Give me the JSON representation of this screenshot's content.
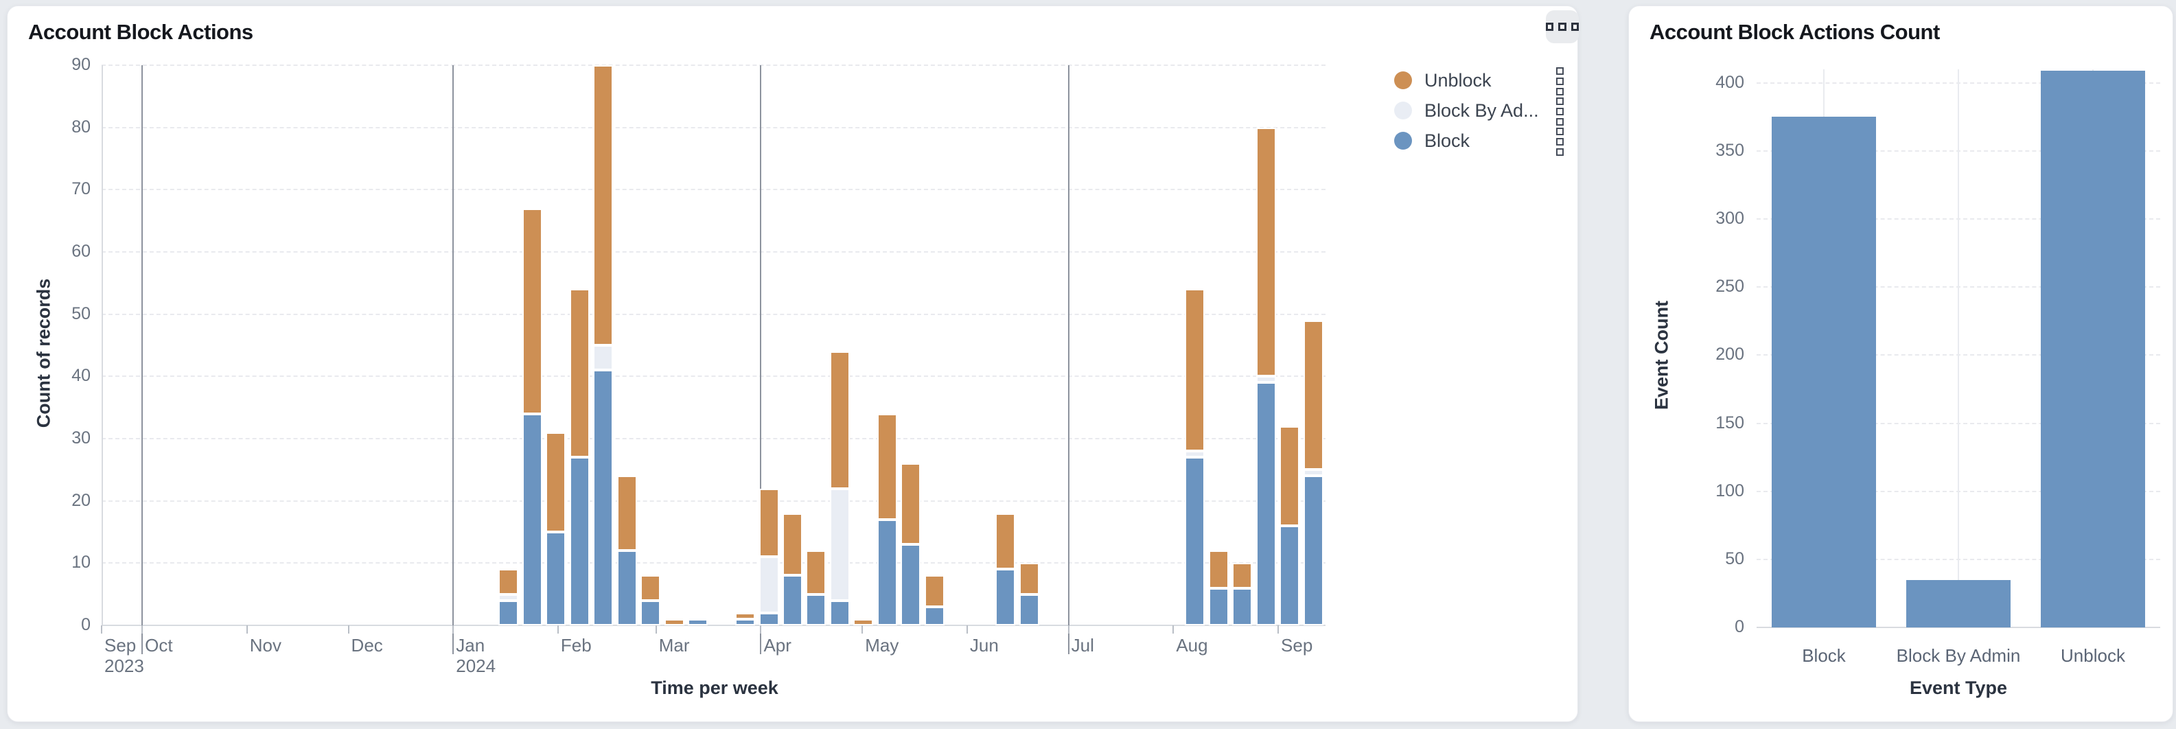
{
  "page": {
    "background": "#e8ebef"
  },
  "left_card": {
    "title": "Account Block Actions",
    "menu_icon": "ellipsis-squares-icon",
    "xlabel": "Time per week",
    "ylabel": "Count of records",
    "legend": {
      "items": [
        {
          "label": "Unblock",
          "color": "#cd8f54"
        },
        {
          "label": "Block By Ad...",
          "color": "#e9edf4"
        },
        {
          "label": "Block",
          "color": "#6b94c0"
        }
      ]
    }
  },
  "right_card": {
    "title": "Account Block Actions Count",
    "xlabel": "Event Type",
    "ylabel": "Event Count"
  },
  "chart_data": [
    {
      "type": "bar",
      "stacked": true,
      "title": "Account Block Actions",
      "xlabel": "Time per week",
      "ylabel": "Count of records",
      "ylim": [
        0,
        90
      ],
      "y_tick_step": 10,
      "grid": true,
      "legend_position": "top-right",
      "series_order": [
        "Block",
        "Block By Admin",
        "Unblock"
      ],
      "series_colors": {
        "Block": "#6b94c0",
        "Block By Admin": "#e9edf4",
        "Unblock": "#cd8f54"
      },
      "x_axis": {
        "start": "2023-09-19",
        "end": "2024-09-15",
        "month_ticks": [
          {
            "label": "Sep",
            "sublabel": "2023",
            "date": "2023-09-19"
          },
          {
            "label": "Oct",
            "date": "2023-10-01"
          },
          {
            "label": "Nov",
            "date": "2023-11-01"
          },
          {
            "label": "Dec",
            "date": "2023-12-01"
          },
          {
            "label": "Jan",
            "sublabel": "2024",
            "date": "2024-01-01"
          },
          {
            "label": "Feb",
            "date": "2024-02-01"
          },
          {
            "label": "Mar",
            "date": "2024-03-01"
          },
          {
            "label": "Apr",
            "date": "2024-04-01"
          },
          {
            "label": "May",
            "date": "2024-05-01"
          },
          {
            "label": "Jun",
            "date": "2024-06-01"
          },
          {
            "label": "Jul",
            "date": "2024-07-01"
          },
          {
            "label": "Aug",
            "date": "2024-08-01"
          },
          {
            "label": "Sep",
            "date": "2024-09-01"
          }
        ],
        "quarter_lines": [
          "2023-10-01",
          "2024-01-01",
          "2024-04-01",
          "2024-07-01"
        ]
      },
      "weeks": [
        {
          "week": "2024-01-14",
          "Block": 4,
          "Block By Admin": 1,
          "Unblock": 4
        },
        {
          "week": "2024-01-21",
          "Block": 34,
          "Block By Admin": 0,
          "Unblock": 33
        },
        {
          "week": "2024-01-28",
          "Block": 15,
          "Block By Admin": 0,
          "Unblock": 16
        },
        {
          "week": "2024-02-04",
          "Block": 27,
          "Block By Admin": 0,
          "Unblock": 27
        },
        {
          "week": "2024-02-11",
          "Block": 41,
          "Block By Admin": 4,
          "Unblock": 45
        },
        {
          "week": "2024-02-18",
          "Block": 12,
          "Block By Admin": 0,
          "Unblock": 12
        },
        {
          "week": "2024-02-25",
          "Block": 4,
          "Block By Admin": 0,
          "Unblock": 4
        },
        {
          "week": "2024-03-03",
          "Block": 0,
          "Block By Admin": 0,
          "Unblock": 1
        },
        {
          "week": "2024-03-10",
          "Block": 1,
          "Block By Admin": 0,
          "Unblock": 0
        },
        {
          "week": "2024-03-24",
          "Block": 1,
          "Block By Admin": 0,
          "Unblock": 1
        },
        {
          "week": "2024-03-31",
          "Block": 2,
          "Block By Admin": 9,
          "Unblock": 11
        },
        {
          "week": "2024-04-07",
          "Block": 8,
          "Block By Admin": 0,
          "Unblock": 10
        },
        {
          "week": "2024-04-14",
          "Block": 5,
          "Block By Admin": 0,
          "Unblock": 7
        },
        {
          "week": "2024-04-21",
          "Block": 4,
          "Block By Admin": 18,
          "Unblock": 22
        },
        {
          "week": "2024-04-28",
          "Block": 0,
          "Block By Admin": 0,
          "Unblock": 1
        },
        {
          "week": "2024-05-05",
          "Block": 17,
          "Block By Admin": 0,
          "Unblock": 17
        },
        {
          "week": "2024-05-12",
          "Block": 13,
          "Block By Admin": 0,
          "Unblock": 13
        },
        {
          "week": "2024-05-19",
          "Block": 3,
          "Block By Admin": 0,
          "Unblock": 5
        },
        {
          "week": "2024-06-09",
          "Block": 9,
          "Block By Admin": 0,
          "Unblock": 9
        },
        {
          "week": "2024-06-16",
          "Block": 5,
          "Block By Admin": 0,
          "Unblock": 5
        },
        {
          "week": "2024-08-04",
          "Block": 27,
          "Block By Admin": 1,
          "Unblock": 26
        },
        {
          "week": "2024-08-11",
          "Block": 6,
          "Block By Admin": 0,
          "Unblock": 6
        },
        {
          "week": "2024-08-18",
          "Block": 6,
          "Block By Admin": 0,
          "Unblock": 4
        },
        {
          "week": "2024-08-25",
          "Block": 39,
          "Block By Admin": 1,
          "Unblock": 40
        },
        {
          "week": "2024-09-01",
          "Block": 16,
          "Block By Admin": 0,
          "Unblock": 16
        },
        {
          "week": "2024-09-08",
          "Block": 24,
          "Block By Admin": 1,
          "Unblock": 24
        }
      ]
    },
    {
      "type": "bar",
      "title": "Account Block Actions Count",
      "xlabel": "Event Type",
      "ylabel": "Event Count",
      "categories": [
        "Block",
        "Block By Admin",
        "Unblock"
      ],
      "values": [
        375,
        35,
        409
      ],
      "ylim": [
        0,
        410
      ],
      "y_tick_step": 50,
      "grid": true,
      "bar_color": "#6b94c0"
    }
  ]
}
